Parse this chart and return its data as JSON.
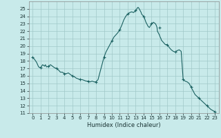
{
  "xlabel": "Humidex (Indice chaleur)",
  "bg_color": "#c8eaea",
  "grid_color": "#a0c8c8",
  "line_color": "#1a6060",
  "marker_color": "#1a6060",
  "xlim": [
    -0.5,
    23.5
  ],
  "ylim": [
    11,
    26
  ],
  "yticks": [
    11,
    12,
    13,
    14,
    15,
    16,
    17,
    18,
    19,
    20,
    21,
    22,
    23,
    24,
    25
  ],
  "xticks": [
    0,
    1,
    2,
    3,
    4,
    5,
    6,
    7,
    8,
    9,
    10,
    11,
    12,
    13,
    14,
    15,
    16,
    17,
    18,
    19,
    20,
    21,
    22,
    23
  ],
  "x": [
    0,
    0.25,
    0.5,
    0.75,
    1.0,
    1.25,
    1.4,
    1.5,
    1.6,
    1.75,
    2.0,
    2.25,
    2.5,
    2.75,
    3.0,
    3.25,
    3.5,
    3.75,
    4.0,
    4.25,
    4.5,
    4.75,
    5.0,
    5.25,
    5.5,
    5.75,
    6.0,
    6.25,
    6.5,
    6.75,
    7.0,
    7.25,
    7.5,
    7.75,
    8.0,
    8.25,
    8.5,
    8.75,
    9.0,
    9.25,
    9.5,
    9.75,
    10.0,
    10.25,
    10.5,
    10.75,
    11.0,
    11.25,
    11.5,
    11.75,
    12.0,
    12.25,
    12.5,
    12.75,
    13.0,
    13.1,
    13.2,
    13.3,
    13.4,
    13.5,
    13.6,
    13.7,
    13.75,
    14.0,
    14.1,
    14.2,
    14.3,
    14.4,
    14.5,
    14.6,
    14.75,
    15.0,
    15.25,
    15.5,
    15.6,
    15.7,
    15.75,
    16.0,
    16.1,
    16.2,
    16.25,
    16.5,
    16.75,
    17.0,
    17.25,
    17.5,
    17.75,
    18.0,
    18.25,
    18.5,
    18.75,
    19.0,
    19.25,
    19.5,
    19.75,
    20.0,
    20.5,
    21.0,
    21.5,
    22.0,
    22.5,
    23.0
  ],
  "y": [
    18.5,
    18.2,
    17.8,
    17.2,
    17.1,
    17.5,
    17.4,
    17.3,
    17.5,
    17.2,
    17.3,
    17.5,
    17.3,
    17.1,
    17.0,
    16.8,
    16.5,
    16.5,
    16.3,
    16.3,
    16.4,
    16.2,
    16.0,
    15.9,
    15.7,
    15.6,
    15.5,
    15.5,
    15.4,
    15.3,
    15.3,
    15.2,
    15.3,
    15.2,
    15.2,
    15.5,
    16.5,
    17.5,
    18.5,
    19.2,
    19.7,
    20.2,
    20.7,
    21.2,
    21.5,
    21.8,
    22.2,
    22.8,
    23.5,
    24.0,
    24.3,
    24.5,
    24.6,
    24.5,
    24.8,
    24.9,
    25.1,
    25.2,
    25.1,
    24.9,
    24.7,
    24.5,
    24.3,
    24.0,
    23.8,
    23.5,
    23.2,
    23.0,
    22.8,
    22.6,
    22.5,
    23.0,
    23.2,
    23.0,
    22.8,
    22.5,
    22.0,
    21.5,
    21.2,
    21.0,
    20.8,
    20.5,
    20.2,
    20.2,
    19.8,
    19.5,
    19.3,
    19.2,
    19.4,
    19.5,
    19.3,
    15.5,
    15.3,
    15.2,
    15.0,
    14.5,
    13.5,
    13.0,
    12.5,
    12.0,
    11.5,
    11.2
  ],
  "marker_x": [
    0,
    1,
    2,
    3,
    4,
    5,
    6,
    7,
    8,
    9,
    10,
    11,
    12,
    13,
    14,
    15,
    16,
    17,
    18,
    19,
    20,
    21,
    22,
    23
  ],
  "marker_y": [
    18.5,
    17.1,
    17.3,
    17.0,
    16.3,
    16.0,
    15.5,
    15.3,
    15.2,
    18.5,
    20.7,
    22.2,
    24.3,
    24.8,
    24.0,
    23.0,
    22.5,
    20.2,
    19.2,
    15.5,
    14.5,
    13.0,
    12.0,
    11.2
  ]
}
